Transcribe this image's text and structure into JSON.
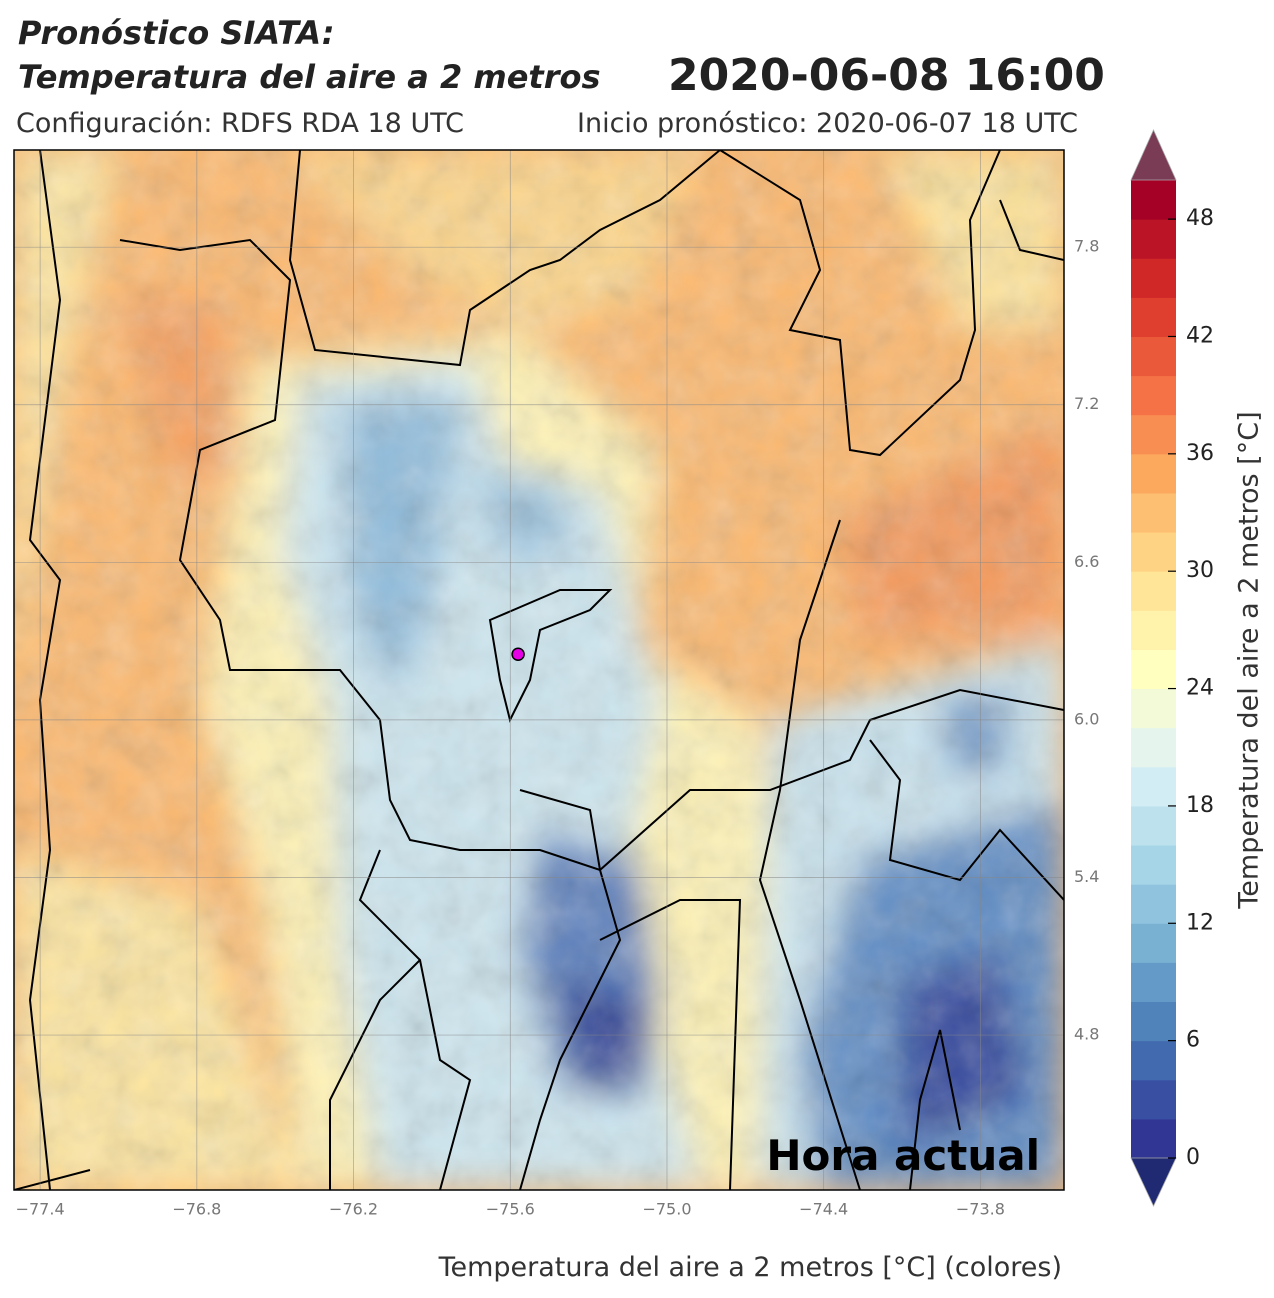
{
  "chart_data": {
    "type": "map",
    "title": [
      "Pronóstico SIATA:",
      "Temperatura del aire a 2 metros"
    ],
    "date": "2020-06-08 16:00",
    "subtitle": [
      "Configuración: RDFS RDA 18 UTC",
      "Inicio pronóstico: 2020-06-07 18 UTC"
    ],
    "xlabel": "Temperatura del aire a 2 metros [°C] (colores)",
    "annotation": "Hora actual",
    "xlim": [
      -77.5,
      -73.48
    ],
    "ylim": [
      4.21,
      8.17
    ],
    "xticks": [
      {
        "value": -77.4,
        "label": "−77.4"
      },
      {
        "value": -76.8,
        "label": "−76.8"
      },
      {
        "value": -76.2,
        "label": "−76.2"
      },
      {
        "value": -75.6,
        "label": "−75.6"
      },
      {
        "value": -75.0,
        "label": "−75.0"
      },
      {
        "value": -74.4,
        "label": "−74.4"
      },
      {
        "value": -73.8,
        "label": "−73.8"
      }
    ],
    "yticks": [
      4.8,
      5.4,
      {
        "value": 6.0,
        "label": "6.0"
      },
      6.6,
      7.2,
      7.8
    ],
    "grid": true,
    "marker": {
      "lon": -75.57,
      "lat": 6.25,
      "color": "#e600e6"
    },
    "colorbar": {
      "label": "Temperatura del aire a 2 metros [°C]",
      "clim": [
        0,
        50
      ],
      "steps": 25,
      "ticks": [
        0,
        6,
        12,
        18,
        24,
        30,
        36,
        42,
        48
      ],
      "colormap": [
        "#313695",
        "#4575b4",
        "#74add1",
        "#abd9e9",
        "#e0f3f8",
        "#ffffbf",
        "#fee090",
        "#fdae61",
        "#f46d43",
        "#d73027",
        "#a50026"
      ],
      "under": "#1f2a72",
      "over": "#7a3b55"
    }
  }
}
